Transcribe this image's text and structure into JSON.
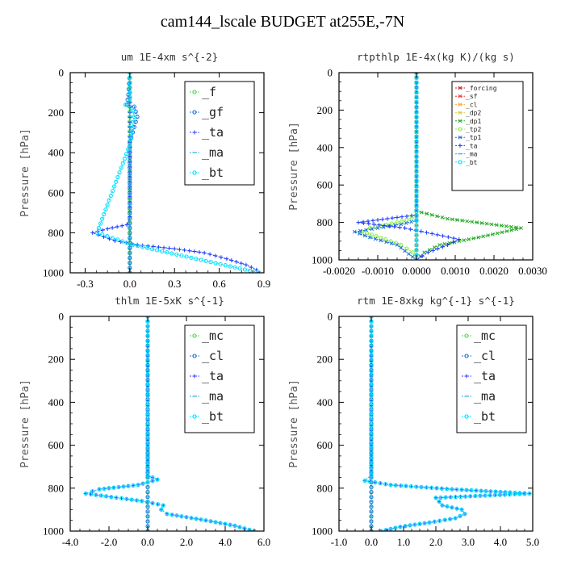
{
  "title": "cam144_lscale  BUDGET at255E,-7N",
  "chart_data": [
    {
      "type": "line",
      "title": "um  1E-4xm s^{-2}",
      "ylabel": "Pressure [hPa]",
      "xlim": [
        -0.4,
        0.9
      ],
      "ylim": [
        1000,
        0
      ],
      "xticks": [
        -0.3,
        0.0,
        0.3,
        0.6,
        0.9
      ],
      "xtick_labels": [
        "-0.3",
        "0.0",
        "0.3",
        "0.6",
        "0.9"
      ],
      "yticks": [
        0,
        200,
        400,
        600,
        800,
        1000
      ],
      "ytick_labels": [
        "0",
        "200",
        "400",
        "600",
        "800",
        "1000"
      ],
      "legend_position": "top-right",
      "series": [
        {
          "name": "_f",
          "color": "#44dd44",
          "marker": "o",
          "x": [
            0.0,
            0.0
          ],
          "y": [
            0,
            1000
          ]
        },
        {
          "name": "_gf",
          "color": "#1e6fd9",
          "marker": "o",
          "x": [
            0.0,
            -0.01,
            -0.02,
            0.03,
            0.05,
            0.0,
            0.0
          ],
          "y": [
            0,
            110,
            160,
            170,
            220,
            350,
            1000
          ]
        },
        {
          "name": "_ta",
          "color": "#1e3cff",
          "marker": "+",
          "x": [
            0.0,
            0.0,
            -0.02,
            -0.15,
            -0.25,
            -0.1,
            0.05,
            0.3,
            0.5,
            0.65,
            0.78,
            0.85,
            0.87
          ],
          "y": [
            0,
            720,
            760,
            780,
            800,
            840,
            860,
            880,
            900,
            930,
            960,
            985,
            1000
          ]
        },
        {
          "name": "_ma",
          "color": "#22aadd",
          "marker": "-",
          "x": [
            0.0,
            0.0
          ],
          "y": [
            0,
            1000
          ]
        },
        {
          "name": "_bt",
          "color": "#00ddff",
          "marker": "o",
          "x": [
            0.0,
            0.0,
            -0.03,
            0.02,
            0.03,
            0.0,
            -0.22,
            0.02,
            0.87
          ],
          "y": [
            0,
            130,
            160,
            190,
            220,
            360,
            800,
            860,
            1000
          ]
        }
      ]
    },
    {
      "type": "line",
      "title": "rtpthlp  1E-4x(kg K)/(kg s)",
      "ylabel": "Pressure [hPa]",
      "xlim": [
        -0.002,
        0.003
      ],
      "ylim": [
        1000,
        0
      ],
      "xticks": [
        -0.002,
        -0.001,
        0.0,
        0.001,
        0.002,
        0.003
      ],
      "xtick_labels": [
        "-0.0020",
        "-0.0010",
        "0.0000",
        "0.0010",
        "0.0020",
        "0.0030"
      ],
      "yticks": [
        0,
        200,
        400,
        600,
        800,
        1000
      ],
      "ytick_labels": [
        "0",
        "200",
        "400",
        "600",
        "800",
        "1000"
      ],
      "legend_position": "top-right",
      "series": [
        {
          "name": "_forcing",
          "color": "#cc2222",
          "marker": "x",
          "x": [
            0.0,
            0.0
          ],
          "y": [
            0,
            1000
          ]
        },
        {
          "name": "_sf",
          "color": "#ee3333",
          "marker": "x",
          "x": [
            0.0,
            0.0
          ],
          "y": [
            0,
            1000
          ]
        },
        {
          "name": "_cl",
          "color": "#ffaa33",
          "marker": "x",
          "x": [
            0.0,
            0.0
          ],
          "y": [
            0,
            1000
          ]
        },
        {
          "name": "_dp2",
          "color": "#ddcc44",
          "marker": "x",
          "x": [
            0.0,
            0.0
          ],
          "y": [
            0,
            1000
          ]
        },
        {
          "name": "_dp1",
          "color": "#22aa22",
          "marker": "x",
          "x": [
            0.0,
            0.0,
            0.0008,
            0.0027,
            0.0016,
            0.0006,
            0.0002,
            0.0
          ],
          "y": [
            0,
            740,
            780,
            830,
            880,
            920,
            960,
            1000
          ]
        },
        {
          "name": "_tp2",
          "color": "#88ee44",
          "marker": "o",
          "x": [
            0.0,
            0.0,
            -0.0005,
            -0.0012,
            -0.0014,
            -0.0008,
            -0.0004,
            -0.0001,
            0.0
          ],
          "y": [
            0,
            770,
            800,
            830,
            850,
            890,
            920,
            960,
            1000
          ]
        },
        {
          "name": "_tp1",
          "color": "#1e6fd9",
          "marker": "x",
          "x": [
            0.0,
            0.0,
            -0.0004,
            -0.001,
            -0.0016,
            -0.0012,
            -0.0005,
            0.0
          ],
          "y": [
            0,
            790,
            810,
            830,
            850,
            880,
            920,
            1000
          ]
        },
        {
          "name": "_ta",
          "color": "#1e3cff",
          "marker": "+",
          "x": [
            0.0,
            0.0,
            -0.0015,
            -0.0003,
            0.0004,
            0.0011,
            0.0008,
            0.0003,
            0.0
          ],
          "y": [
            0,
            760,
            800,
            830,
            860,
            890,
            920,
            960,
            1000
          ]
        },
        {
          "name": "_ma",
          "color": "#22aadd",
          "marker": "-",
          "x": [
            0.0,
            0.0
          ],
          "y": [
            0,
            1000
          ]
        },
        {
          "name": "_bt",
          "color": "#00ddff",
          "marker": "o",
          "x": [
            0.0,
            0.0
          ],
          "y": [
            0,
            1000
          ]
        }
      ]
    },
    {
      "type": "line",
      "title": "thlm  1E-5xK s^{-1}",
      "ylabel": "Pressure [hPa]",
      "xlim": [
        -4.0,
        6.0
      ],
      "ylim": [
        1000,
        0
      ],
      "xticks": [
        -4.0,
        -2.0,
        0.0,
        2.0,
        4.0,
        6.0
      ],
      "xtick_labels": [
        "-4.0",
        "-2.0",
        "0.0",
        "2.0",
        "4.0",
        "6.0"
      ],
      "yticks": [
        0,
        200,
        400,
        600,
        800,
        1000
      ],
      "ytick_labels": [
        "0",
        "200",
        "400",
        "600",
        "800",
        "1000"
      ],
      "legend_position": "top-right",
      "series": [
        {
          "name": "_mc",
          "color": "#44dd44",
          "marker": "o",
          "x": [
            0.0,
            0.0
          ],
          "y": [
            0,
            1000
          ]
        },
        {
          "name": "_cl",
          "color": "#1e6fd9",
          "marker": "o",
          "x": [
            0.0,
            0.0
          ],
          "y": [
            0,
            1000
          ]
        },
        {
          "name": "_ta",
          "color": "#1e3cff",
          "marker": "+",
          "x": [
            0.0,
            0.0,
            0.5,
            -0.5,
            -2.5,
            -3.2,
            -0.3,
            0.8,
            0.7,
            1.0,
            3.0,
            4.5,
            5.5
          ],
          "y": [
            0,
            740,
            760,
            785,
            805,
            825,
            860,
            880,
            900,
            920,
            950,
            975,
            1000
          ]
        },
        {
          "name": "_ma",
          "color": "#22aadd",
          "marker": "-",
          "x": [
            0.0,
            0.0
          ],
          "y": [
            0,
            1000
          ]
        },
        {
          "name": "_bt",
          "color": "#00ddff",
          "marker": "o",
          "x": [
            0.0,
            0.0,
            0.5,
            -0.5,
            -2.5,
            -3.2,
            -0.3,
            0.8,
            0.7,
            1.0,
            3.0,
            4.5,
            5.5
          ],
          "y": [
            0,
            740,
            760,
            785,
            805,
            825,
            860,
            880,
            900,
            920,
            950,
            975,
            1000
          ]
        }
      ]
    },
    {
      "type": "line",
      "title": "rtm  1E-8xkg kg^{-1} s^{-1}",
      "ylabel": "Pressure [hPa]",
      "xlim": [
        -1.0,
        5.0
      ],
      "ylim": [
        1000,
        0
      ],
      "xticks": [
        -1.0,
        0.0,
        1.0,
        2.0,
        3.0,
        4.0,
        5.0
      ],
      "xtick_labels": [
        "-1.0",
        "0.0",
        "1.0",
        "2.0",
        "3.0",
        "4.0",
        "5.0"
      ],
      "yticks": [
        0,
        200,
        400,
        600,
        800,
        1000
      ],
      "ytick_labels": [
        "0",
        "200",
        "400",
        "600",
        "800",
        "1000"
      ],
      "legend_position": "top-right",
      "series": [
        {
          "name": "_mc",
          "color": "#44dd44",
          "marker": "o",
          "x": [
            0.0,
            0.0
          ],
          "y": [
            0,
            1000
          ]
        },
        {
          "name": "_cl",
          "color": "#1e6fd9",
          "marker": "o",
          "x": [
            0.0,
            0.0
          ],
          "y": [
            0,
            1000
          ]
        },
        {
          "name": "_ta",
          "color": "#1e3cff",
          "marker": "+",
          "x": [
            0.0,
            0.0,
            -0.2,
            0.6,
            2.5,
            4.9,
            2.0,
            2.2,
            2.8,
            2.9,
            2.6,
            1.8,
            0.9,
            0.3
          ],
          "y": [
            0,
            740,
            765,
            785,
            805,
            825,
            845,
            880,
            900,
            920,
            940,
            960,
            980,
            1000
          ]
        },
        {
          "name": "_ma",
          "color": "#22aadd",
          "marker": "-",
          "x": [
            0.0,
            0.0
          ],
          "y": [
            0,
            1000
          ]
        },
        {
          "name": "_bt",
          "color": "#00ddff",
          "marker": "o",
          "x": [
            0.0,
            0.0,
            -0.2,
            0.6,
            2.5,
            4.9,
            2.0,
            2.2,
            2.8,
            2.9,
            2.6,
            1.8,
            0.9,
            0.3
          ],
          "y": [
            0,
            740,
            765,
            785,
            805,
            825,
            845,
            880,
            900,
            920,
            940,
            960,
            980,
            1000
          ]
        }
      ]
    }
  ]
}
